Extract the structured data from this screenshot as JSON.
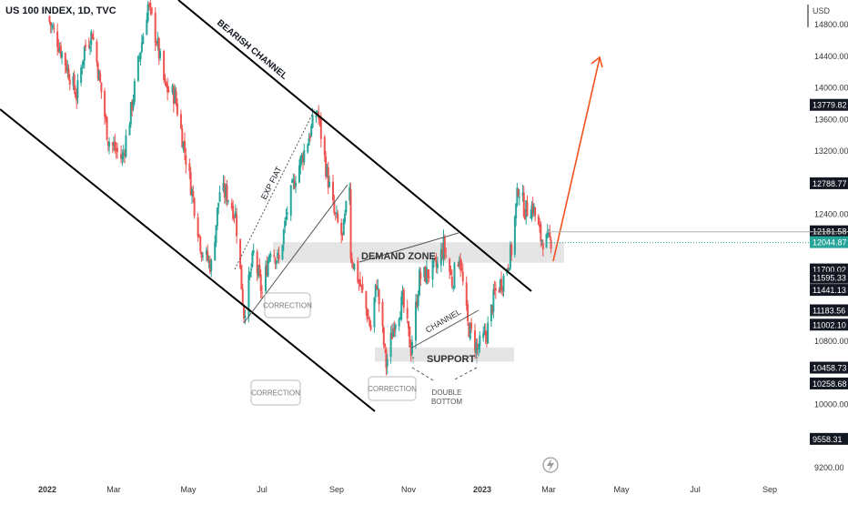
{
  "chart_data": {
    "type": "candlestick",
    "title": "US 100 INDEX, 1D, TVC",
    "currency": "USD",
    "colors": {
      "up": "#26a69a",
      "down": "#ef5350",
      "projection": "#f4511e",
      "channel": "#000000",
      "zone": "#d9d9d9"
    },
    "xaxis_ticks": [
      "2022",
      "Mar",
      "May",
      "Jul",
      "Sep",
      "Nov",
      "2023",
      "Mar",
      "May",
      "Jul",
      "Sep"
    ],
    "yaxis_ticks": [
      14800,
      14400,
      14000,
      13600,
      13200,
      12400,
      10800,
      10000,
      9200
    ],
    "yaxis_tick_labels": [
      "14800.00",
      "14400.00",
      "14000.00",
      "13600.00",
      "13200.00",
      "12400.00",
      "10800.00",
      "10000.00",
      "9200.00"
    ],
    "price_labels": [
      {
        "label": "13779.82",
        "value": 13779.82,
        "style": "dark"
      },
      {
        "label": "12788.77",
        "value": 12788.77,
        "style": "dark"
      },
      {
        "label": "12181.58",
        "value": 12181.58,
        "style": "dark"
      },
      {
        "label": "12044.87",
        "value": 12044.87,
        "style": "last"
      },
      {
        "label": "11700.02",
        "value": 11700.02,
        "style": "dark"
      },
      {
        "label": "11595.33",
        "value": 11595.33,
        "style": "dark"
      },
      {
        "label": "11441.13",
        "value": 11441.13,
        "style": "dark"
      },
      {
        "label": "11183.56",
        "value": 11183.56,
        "style": "dark"
      },
      {
        "label": "11002.10",
        "value": 11002.1,
        "style": "dark"
      },
      {
        "label": "10458.73",
        "value": 10458.73,
        "style": "dark"
      },
      {
        "label": "10258.68",
        "value": 10258.68,
        "style": "dark"
      },
      {
        "label": "9558.31",
        "value": 9558.31,
        "style": "dark"
      }
    ],
    "price_path": [
      [
        "2022-01-01",
        14900
      ],
      [
        "2022-01-10",
        14600
      ],
      [
        "2022-01-20",
        14200
      ],
      [
        "2022-01-27",
        13900
      ],
      [
        "2022-02-03",
        14500
      ],
      [
        "2022-02-10",
        14700
      ],
      [
        "2022-02-18",
        13950
      ],
      [
        "2022-02-24",
        13350
      ],
      [
        "2022-03-08",
        13100
      ],
      [
        "2022-03-15",
        13700
      ],
      [
        "2022-03-22",
        14400
      ],
      [
        "2022-03-29",
        15050
      ],
      [
        "2022-04-05",
        14600
      ],
      [
        "2022-04-12",
        14000
      ],
      [
        "2022-04-20",
        13900
      ],
      [
        "2022-04-28",
        13200
      ],
      [
        "2022-05-05",
        12600
      ],
      [
        "2022-05-12",
        11950
      ],
      [
        "2022-05-20",
        11750
      ],
      [
        "2022-05-27",
        12700
      ],
      [
        "2022-06-02",
        12650
      ],
      [
        "2022-06-09",
        12400
      ],
      [
        "2022-06-16",
        11150
      ],
      [
        "2022-06-24",
        11900
      ],
      [
        "2022-07-01",
        11400
      ],
      [
        "2022-07-08",
        12000
      ],
      [
        "2022-07-15",
        11800
      ],
      [
        "2022-07-22",
        12450
      ],
      [
        "2022-07-29",
        12900
      ],
      [
        "2022-08-05",
        13200
      ],
      [
        "2022-08-16",
        13720
      ],
      [
        "2022-08-23",
        13000
      ],
      [
        "2022-08-30",
        12400
      ],
      [
        "2022-09-06",
        12100
      ],
      [
        "2022-09-12",
        12800
      ],
      [
        "2022-09-13",
        11900
      ],
      [
        "2022-09-23",
        11400
      ],
      [
        "2022-09-30",
        10950
      ],
      [
        "2022-10-05",
        11550
      ],
      [
        "2022-10-13",
        10500
      ],
      [
        "2022-10-20",
        11050
      ],
      [
        "2022-10-27",
        11300
      ],
      [
        "2022-11-03",
        10700
      ],
      [
        "2022-11-10",
        11600
      ],
      [
        "2022-11-17",
        11650
      ],
      [
        "2022-11-25",
        11750
      ],
      [
        "2022-11-30",
        12000
      ],
      [
        "2022-12-07",
        11550
      ],
      [
        "2022-12-13",
        11900
      ],
      [
        "2022-12-20",
        11000
      ],
      [
        "2022-12-28",
        10700
      ],
      [
        "2023-01-05",
        10900
      ],
      [
        "2023-01-12",
        11400
      ],
      [
        "2023-01-20",
        11600
      ],
      [
        "2023-01-27",
        11950
      ],
      [
        "2023-02-02",
        12750
      ],
      [
        "2023-02-08",
        12450
      ],
      [
        "2023-02-15",
        12500
      ],
      [
        "2023-02-22",
        12100
      ],
      [
        "2023-02-28",
        12050
      ],
      [
        "2023-03-03",
        12080
      ]
    ],
    "annotations": {
      "bearish_channel": "BEARISH CHANNEL",
      "exp_fiat": "EXP FIAT",
      "demand_zone": "DEMAND ZONE",
      "support": "SUPPORT",
      "channel": "CHANNEL",
      "correction_1": "CORRECTION",
      "correction_2": "CORRECTION",
      "correction_3": "CORRECTION",
      "double_bottom_1": "DOUBLE",
      "double_bottom_2": "BOTTOM"
    }
  }
}
